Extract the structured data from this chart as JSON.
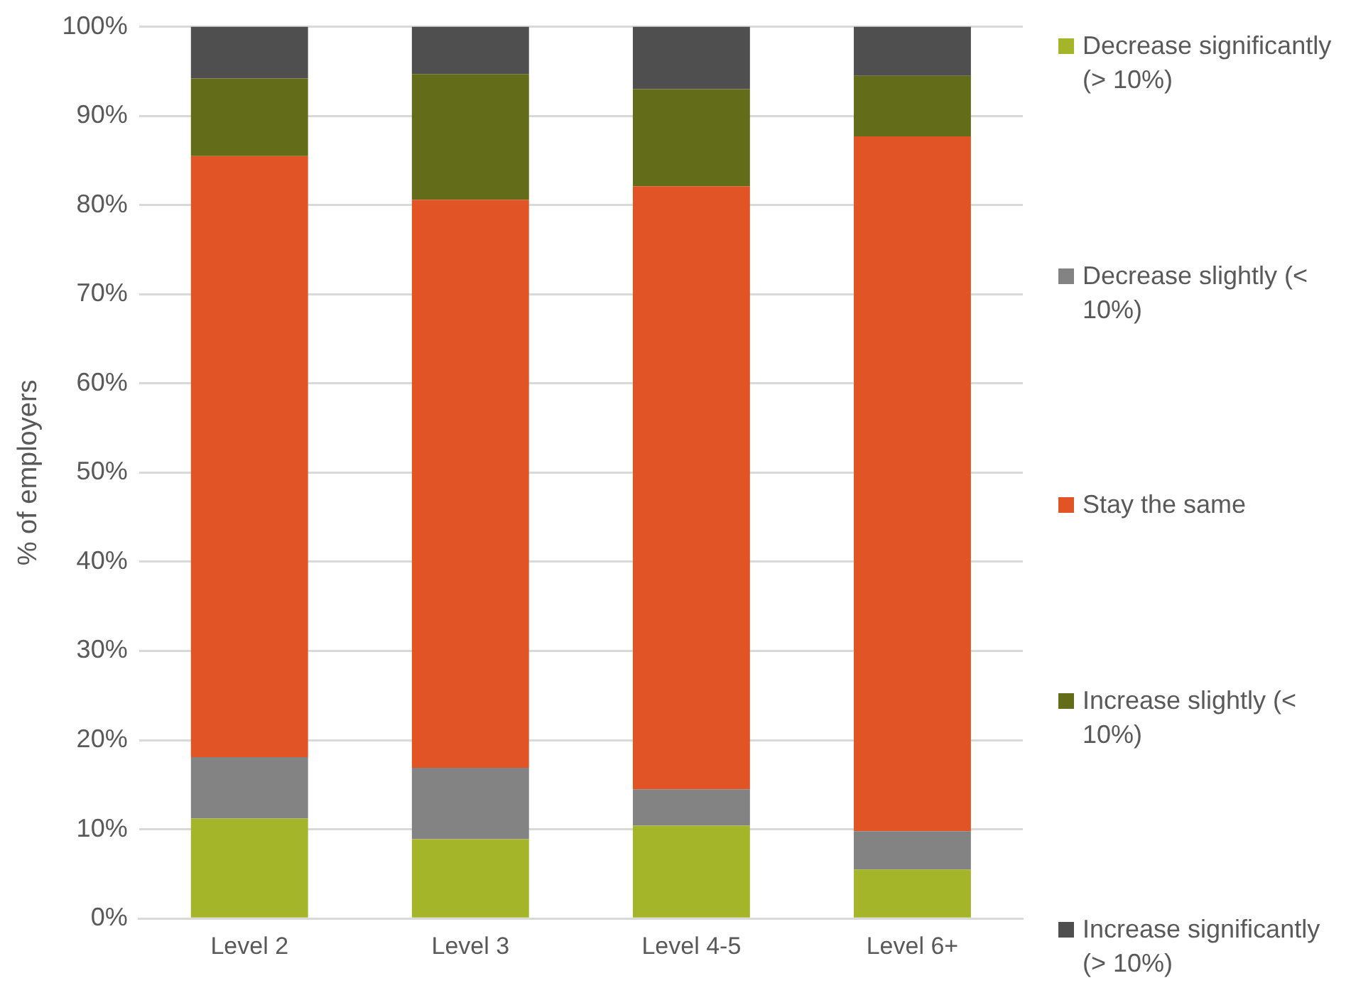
{
  "chart_data": {
    "type": "bar",
    "stacked": true,
    "ylabel": "% of employers",
    "categories": [
      "Level 2",
      "Level 3",
      "Level 4-5",
      "Level 6+"
    ],
    "series": [
      {
        "name": "Decrease significantly (> 10%)",
        "color": "#a5b52a",
        "values": [
          11.2,
          8.9,
          10.4,
          5.5
        ]
      },
      {
        "name": "Decrease slightly (< 10%)",
        "color": "#838383",
        "values": [
          6.9,
          8.0,
          4.1,
          4.3
        ]
      },
      {
        "name": "Stay the same",
        "color": "#e05426",
        "values": [
          67.4,
          63.7,
          67.6,
          77.9
        ]
      },
      {
        "name": "Increase slightly (< 10%)",
        "color": "#636c19",
        "values": [
          8.7,
          14.1,
          10.9,
          6.8
        ]
      },
      {
        "name": "Increase significantly (> 10%)",
        "color": "#4f4f4f",
        "values": [
          5.8,
          5.3,
          7.0,
          5.5
        ]
      }
    ],
    "ylim": [
      0,
      100
    ],
    "yticks": [
      {
        "value": 0,
        "label": "0%"
      },
      {
        "value": 10,
        "label": "10%"
      },
      {
        "value": 20,
        "label": "20%"
      },
      {
        "value": 30,
        "label": "30%"
      },
      {
        "value": 40,
        "label": "40%"
      },
      {
        "value": 50,
        "label": "50%"
      },
      {
        "value": 60,
        "label": "60%"
      },
      {
        "value": 70,
        "label": "70%"
      },
      {
        "value": 80,
        "label": "80%"
      },
      {
        "value": 90,
        "label": "90%"
      },
      {
        "value": 100,
        "label": "100%"
      }
    ],
    "grid": "y",
    "legend": "right"
  }
}
